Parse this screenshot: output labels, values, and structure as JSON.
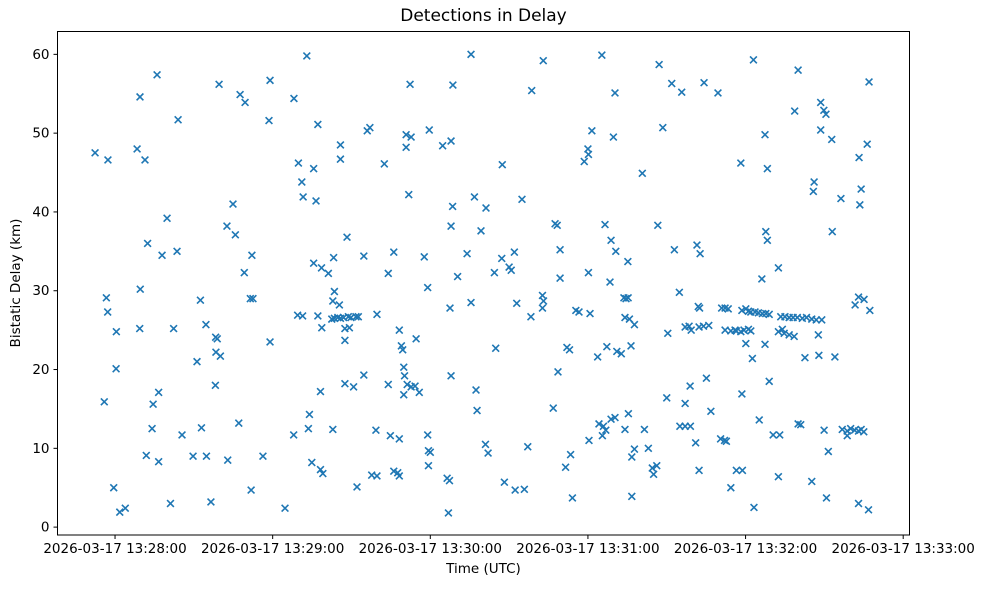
{
  "chart_data": {
    "type": "scatter",
    "title": "Detections in Delay",
    "xlabel": "Time (UTC)",
    "ylabel": "Bistatic Delay (km)",
    "marker": "x",
    "marker_color": "#1f77b4",
    "background_color": "#ffffff",
    "grid": false,
    "legend": null,
    "x_unit": "seconds after 2026-03-17 13:28:00 UTC",
    "xlim": [
      -21.9,
      302.4
    ],
    "ylim": [
      -1.0,
      62.9
    ],
    "x_tick_offsets_s": [
      0,
      60,
      120,
      180,
      240,
      300
    ],
    "x_tick_labels": [
      "2026-03-17 13:28:00",
      "2026-03-17 13:29:00",
      "2026-03-17 13:30:00",
      "2026-03-17 13:31:00",
      "2026-03-17 13:32:00",
      "2026-03-17 13:33:00"
    ],
    "y_ticks": [
      0,
      10,
      20,
      30,
      40,
      50,
      60
    ],
    "points": [
      [
        16,
        57.4
      ],
      [
        9.5,
        54.6
      ],
      [
        39.6,
        56.2
      ],
      [
        47.6,
        54.9
      ],
      [
        49.5,
        53.9
      ],
      [
        59,
        56.7
      ],
      [
        58.6,
        51.6
      ],
      [
        24,
        51.7
      ],
      [
        -7.6,
        47.5
      ],
      [
        -2.7,
        46.6
      ],
      [
        8.4,
        48
      ],
      [
        11.4,
        46.6
      ],
      [
        73,
        59.8
      ],
      [
        135.5,
        60
      ],
      [
        112.3,
        56.2
      ],
      [
        128.6,
        56.1
      ],
      [
        68.1,
        54.4
      ],
      [
        77.2,
        51.1
      ],
      [
        96,
        50.3
      ],
      [
        97,
        50.7
      ],
      [
        110.8,
        49.8
      ],
      [
        112.7,
        49.5
      ],
      [
        119.6,
        50.4
      ],
      [
        110.8,
        48.2
      ],
      [
        124.7,
        48.4
      ],
      [
        127.9,
        49
      ],
      [
        85.8,
        48.5
      ],
      [
        85.8,
        46.7
      ],
      [
        69.8,
        46.2
      ],
      [
        75.6,
        45.5
      ],
      [
        71.1,
        43.8
      ],
      [
        102.5,
        46.1
      ],
      [
        111.8,
        42.2
      ],
      [
        136.8,
        41.9
      ],
      [
        163,
        59.2
      ],
      [
        185.3,
        59.9
      ],
      [
        207.1,
        58.7
      ],
      [
        158.6,
        55.4
      ],
      [
        190.3,
        55.1
      ],
      [
        211.9,
        56.3
      ],
      [
        215.7,
        55.2
      ],
      [
        181.5,
        50.3
      ],
      [
        189.7,
        49.5
      ],
      [
        208.5,
        50.7
      ],
      [
        180,
        48
      ],
      [
        180.2,
        47.3
      ],
      [
        178.6,
        46.4
      ],
      [
        147.4,
        46
      ],
      [
        200.7,
        44.9
      ],
      [
        154.9,
        41.6
      ],
      [
        243,
        59.3
      ],
      [
        260,
        58
      ],
      [
        224.2,
        56.4
      ],
      [
        229.5,
        55.1
      ],
      [
        287,
        56.5
      ],
      [
        268.6,
        53.9
      ],
      [
        269.8,
        52.9
      ],
      [
        270.6,
        52.4
      ],
      [
        258.7,
        52.8
      ],
      [
        268.6,
        50.4
      ],
      [
        272.8,
        49.2
      ],
      [
        247.4,
        49.8
      ],
      [
        286.3,
        48.6
      ],
      [
        283.2,
        46.9
      ],
      [
        238.2,
        46.2
      ],
      [
        248.3,
        45.5
      ],
      [
        266.1,
        43.8
      ],
      [
        265.8,
        42.6
      ],
      [
        276.3,
        41.7
      ],
      [
        284,
        42.9
      ],
      [
        283.5,
        40.9
      ],
      [
        44.9,
        41
      ],
      [
        19.8,
        39.2
      ],
      [
        42.6,
        38.2
      ],
      [
        45.8,
        37.1
      ],
      [
        12.4,
        36
      ],
      [
        17.9,
        34.5
      ],
      [
        23.6,
        35
      ],
      [
        52.1,
        34.5
      ],
      [
        49.2,
        32.3
      ],
      [
        51.5,
        29
      ],
      [
        52.5,
        29
      ],
      [
        9.6,
        30.2
      ],
      [
        -3.3,
        29.1
      ],
      [
        32.5,
        28.8
      ],
      [
        -2.8,
        27.3
      ],
      [
        0.5,
        24.8
      ],
      [
        9.4,
        25.2
      ],
      [
        22.3,
        25.2
      ],
      [
        34.6,
        25.7
      ],
      [
        38.3,
        24.1
      ],
      [
        38.9,
        23.9
      ],
      [
        38.4,
        22.2
      ],
      [
        40.1,
        21.7
      ],
      [
        31.2,
        21
      ],
      [
        59,
        23.5
      ],
      [
        71.6,
        41.9
      ],
      [
        76.5,
        41.4
      ],
      [
        128.5,
        40.7
      ],
      [
        127.9,
        38.2
      ],
      [
        88.3,
        36.8
      ],
      [
        83.2,
        34.2
      ],
      [
        94.7,
        34.4
      ],
      [
        106.1,
        34.9
      ],
      [
        117.7,
        34.3
      ],
      [
        134,
        34.7
      ],
      [
        75.6,
        33.5
      ],
      [
        78.6,
        32.9
      ],
      [
        81.2,
        32.2
      ],
      [
        104,
        32.2
      ],
      [
        130.4,
        31.8
      ],
      [
        119,
        30.4
      ],
      [
        83.5,
        29.9
      ],
      [
        82.9,
        28.7
      ],
      [
        85.4,
        28.2
      ],
      [
        135.5,
        28.5
      ],
      [
        127.5,
        27.8
      ],
      [
        69.5,
        26.9
      ],
      [
        71.4,
        26.8
      ],
      [
        77.2,
        26.8
      ],
      [
        82.5,
        26.4
      ],
      [
        83.5,
        26.5
      ],
      [
        84.8,
        26.6
      ],
      [
        85.8,
        26.5
      ],
      [
        87,
        26.6
      ],
      [
        88.8,
        26.7
      ],
      [
        89.8,
        26.6
      ],
      [
        91.7,
        26.7
      ],
      [
        92.6,
        26.7
      ],
      [
        99.7,
        27
      ],
      [
        78.7,
        25.3
      ],
      [
        87.5,
        25.2
      ],
      [
        89.2,
        25.3
      ],
      [
        87.5,
        23.7
      ],
      [
        108.2,
        25
      ],
      [
        114.6,
        23.9
      ],
      [
        109,
        23
      ],
      [
        109.5,
        22.5
      ],
      [
        141.2,
        40.5
      ],
      [
        139.3,
        37.6
      ],
      [
        167.5,
        38.5
      ],
      [
        168.3,
        38.3
      ],
      [
        186.5,
        38.4
      ],
      [
        206.6,
        38.3
      ],
      [
        188.8,
        36.4
      ],
      [
        152,
        34.9
      ],
      [
        147.2,
        34.1
      ],
      [
        150,
        33
      ],
      [
        150.8,
        32.6
      ],
      [
        144.4,
        32.3
      ],
      [
        190.6,
        35
      ],
      [
        195.2,
        33.7
      ],
      [
        212.9,
        35.2
      ],
      [
        169.4,
        35.2
      ],
      [
        169.4,
        31.6
      ],
      [
        180.2,
        32.3
      ],
      [
        188.4,
        31.1
      ],
      [
        193.7,
        29.1
      ],
      [
        195.3,
        29.1
      ],
      [
        194.5,
        29
      ],
      [
        214.8,
        29.8
      ],
      [
        152.9,
        28.4
      ],
      [
        162.7,
        29.4
      ],
      [
        163.1,
        28.7
      ],
      [
        158.3,
        26.7
      ],
      [
        162.7,
        27.8
      ],
      [
        175.4,
        27.5
      ],
      [
        176.6,
        27.3
      ],
      [
        180.8,
        27.1
      ],
      [
        194.1,
        26.6
      ],
      [
        195.8,
        26.4
      ],
      [
        197.7,
        25.7
      ],
      [
        210.4,
        24.6
      ],
      [
        217,
        25.4
      ],
      [
        218.5,
        25.5
      ],
      [
        219.3,
        25
      ],
      [
        144.9,
        22.7
      ],
      [
        172,
        22.8
      ],
      [
        173,
        22.5
      ],
      [
        187.2,
        22.9
      ],
      [
        191,
        22.3
      ],
      [
        192.7,
        22
      ],
      [
        196.4,
        23
      ],
      [
        183.7,
        21.6
      ],
      [
        221.5,
        35.8
      ],
      [
        222.7,
        34.7
      ],
      [
        247.7,
        37.5
      ],
      [
        248.3,
        36.4
      ],
      [
        273,
        37.5
      ],
      [
        252.5,
        32.9
      ],
      [
        246.2,
        31.5
      ],
      [
        283,
        29.2
      ],
      [
        285.1,
        28.9
      ],
      [
        281.7,
        28.2
      ],
      [
        287.3,
        27.5
      ],
      [
        222,
        28
      ],
      [
        222.5,
        27.8
      ],
      [
        230.9,
        27.8
      ],
      [
        232.2,
        27.8
      ],
      [
        233.4,
        27.7
      ],
      [
        238.6,
        27.5
      ],
      [
        240.1,
        27.7
      ],
      [
        241.1,
        27.4
      ],
      [
        242,
        27.3
      ],
      [
        243.6,
        27.3
      ],
      [
        244.9,
        27.2
      ],
      [
        246.4,
        27.1
      ],
      [
        247.7,
        27.1
      ],
      [
        249,
        27
      ],
      [
        253.4,
        26.7
      ],
      [
        255,
        26.7
      ],
      [
        256.6,
        26.6
      ],
      [
        258.1,
        26.6
      ],
      [
        259.7,
        26.6
      ],
      [
        261.6,
        26.5
      ],
      [
        263.2,
        26.6
      ],
      [
        265.2,
        26.4
      ],
      [
        266.9,
        26.3
      ],
      [
        269,
        26.3
      ],
      [
        222.3,
        25.4
      ],
      [
        224,
        25.5
      ],
      [
        226,
        25.6
      ],
      [
        232.2,
        25
      ],
      [
        234.4,
        24.9
      ],
      [
        236,
        25
      ],
      [
        236.5,
        24.9
      ],
      [
        238.2,
        24.8
      ],
      [
        239.4,
        25
      ],
      [
        241.1,
        25.1
      ],
      [
        242,
        24.9
      ],
      [
        252.5,
        24.8
      ],
      [
        254,
        25.1
      ],
      [
        254.7,
        24.6
      ],
      [
        256.6,
        24.4
      ],
      [
        258.5,
        24.2
      ],
      [
        267.7,
        24.4
      ],
      [
        240.1,
        23.3
      ],
      [
        247.4,
        23.2
      ],
      [
        242.6,
        21.4
      ],
      [
        262.6,
        21.5
      ],
      [
        267.9,
        21.8
      ],
      [
        274,
        21.6
      ],
      [
        0.4,
        20.1
      ],
      [
        38.2,
        18
      ],
      [
        -4.1,
        15.9
      ],
      [
        16.6,
        17.1
      ],
      [
        14.5,
        15.6
      ],
      [
        14.1,
        12.5
      ],
      [
        25.5,
        11.7
      ],
      [
        32.9,
        12.6
      ],
      [
        47.1,
        13.2
      ],
      [
        11.9,
        9.1
      ],
      [
        16.6,
        8.3
      ],
      [
        29.7,
        9
      ],
      [
        34.8,
        9
      ],
      [
        42.9,
        8.5
      ],
      [
        56.3,
        9
      ],
      [
        -0.5,
        5
      ],
      [
        1.8,
        1.9
      ],
      [
        3.9,
        2.4
      ],
      [
        21.1,
        3
      ],
      [
        36.5,
        3.2
      ],
      [
        51.8,
        4.7
      ],
      [
        94.7,
        19.3
      ],
      [
        109.9,
        20.3
      ],
      [
        110.2,
        19.2
      ],
      [
        127.9,
        19.2
      ],
      [
        87.5,
        18.2
      ],
      [
        90.8,
        17.8
      ],
      [
        78.2,
        17.2
      ],
      [
        104,
        18.1
      ],
      [
        111.2,
        18.1
      ],
      [
        112.7,
        17.8
      ],
      [
        114.2,
        17.9
      ],
      [
        115.8,
        17.1
      ],
      [
        109.9,
        16.8
      ],
      [
        137.4,
        17.4
      ],
      [
        137.8,
        14.8
      ],
      [
        74,
        14.3
      ],
      [
        73.6,
        12.5
      ],
      [
        68,
        11.7
      ],
      [
        82.9,
        12.4
      ],
      [
        99.3,
        12.3
      ],
      [
        104.8,
        11.6
      ],
      [
        108.2,
        11.2
      ],
      [
        119,
        11.7
      ],
      [
        119.3,
        9.7
      ],
      [
        120,
        9.5
      ],
      [
        119.3,
        7.8
      ],
      [
        74.9,
        8.2
      ],
      [
        78.2,
        7.3
      ],
      [
        79.1,
        6.8
      ],
      [
        97.7,
        6.6
      ],
      [
        99.7,
        6.5
      ],
      [
        106.1,
        7.1
      ],
      [
        107.6,
        6.9
      ],
      [
        108.2,
        6.5
      ],
      [
        92.1,
        5.1
      ],
      [
        126.4,
        6.2
      ],
      [
        127.3,
        5.9
      ],
      [
        64.7,
        2.4
      ],
      [
        126.9,
        1.8
      ],
      [
        168.6,
        19.7
      ],
      [
        218.9,
        17.9
      ],
      [
        210,
        16.4
      ],
      [
        217,
        15.7
      ],
      [
        166.8,
        15.1
      ],
      [
        141,
        10.5
      ],
      [
        142,
        9.4
      ],
      [
        157.1,
        10.2
      ],
      [
        184.2,
        13.1
      ],
      [
        185.9,
        12.8
      ],
      [
        186.8,
        12.3
      ],
      [
        188.8,
        13.7
      ],
      [
        190.3,
        13.9
      ],
      [
        195.4,
        14.4
      ],
      [
        194.1,
        12.4
      ],
      [
        201.5,
        12.4
      ],
      [
        180.4,
        11
      ],
      [
        185.5,
        11.6
      ],
      [
        215,
        12.8
      ],
      [
        217,
        12.8
      ],
      [
        219,
        12.8
      ],
      [
        221,
        10.7
      ],
      [
        197.7,
        9.9
      ],
      [
        203,
        10
      ],
      [
        196.7,
        8.9
      ],
      [
        173.4,
        9.2
      ],
      [
        171.5,
        7.6
      ],
      [
        204.5,
        7.5
      ],
      [
        206.2,
        7.8
      ],
      [
        205,
        6.7
      ],
      [
        148.2,
        5.7
      ],
      [
        152.3,
        4.7
      ],
      [
        155.8,
        4.8
      ],
      [
        174.1,
        3.7
      ],
      [
        196.7,
        3.9
      ],
      [
        225.1,
        18.9
      ],
      [
        249,
        18.5
      ],
      [
        238.6,
        16.9
      ],
      [
        226.8,
        14.7
      ],
      [
        245.2,
        13.6
      ],
      [
        260,
        13.1
      ],
      [
        261,
        13
      ],
      [
        250.5,
        11.7
      ],
      [
        253,
        11.7
      ],
      [
        269.9,
        12.3
      ],
      [
        276.8,
        12.4
      ],
      [
        278.7,
        12.2
      ],
      [
        278.7,
        11.6
      ],
      [
        280,
        12.5
      ],
      [
        281.5,
        12.3
      ],
      [
        283,
        12.2
      ],
      [
        284,
        12.4
      ],
      [
        285,
        12.1
      ],
      [
        230.5,
        11.2
      ],
      [
        232,
        11
      ],
      [
        232.7,
        10.9
      ],
      [
        271.5,
        9.6
      ],
      [
        222.3,
        7.2
      ],
      [
        236.5,
        7.2
      ],
      [
        238.8,
        7.2
      ],
      [
        252.5,
        6.4
      ],
      [
        265.2,
        5.8
      ],
      [
        234.4,
        5
      ],
      [
        243.2,
        2.5
      ],
      [
        270.8,
        3.7
      ],
      [
        283,
        3
      ],
      [
        286.8,
        2.2
      ]
    ]
  }
}
